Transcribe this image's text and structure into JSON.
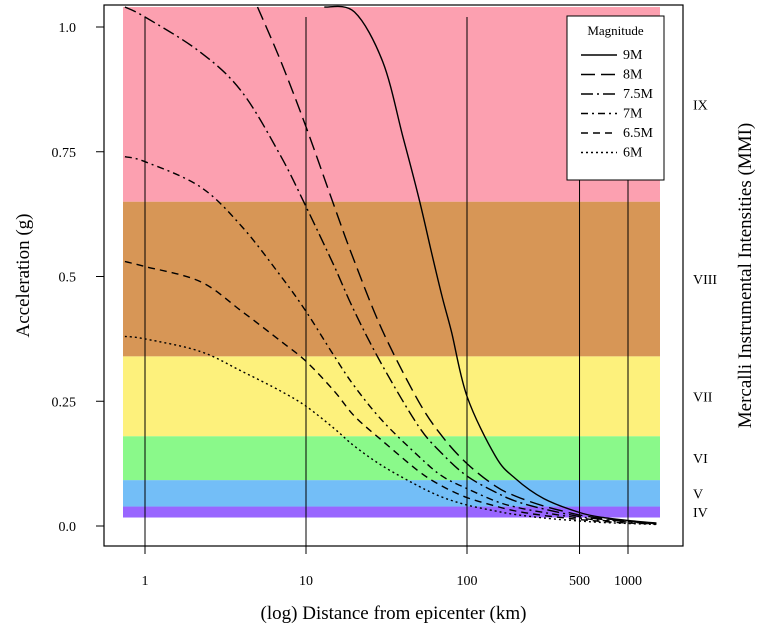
{
  "chart_data": {
    "type": "line",
    "xlabel": "(log) Distance from epicenter (km)",
    "ylabel": "Acceleration (g)",
    "right_label": "Mercalli Instrumental Intensities (MMI)",
    "x_scale": "log",
    "xlim": [
      0.6,
      3000
    ],
    "ylim": [
      0,
      1.04
    ],
    "x_ticks": [
      1,
      10,
      100,
      500,
      1000
    ],
    "x_tick_labels": [
      "1",
      "10",
      "100",
      "500",
      "1000"
    ],
    "y_ticks": [
      0,
      0.25,
      0.5,
      0.75,
      1.0
    ],
    "y_tick_labels": [
      "0.0",
      "0.25",
      "0.5",
      "0.75",
      "1.0"
    ],
    "vertical_gridlines": [
      1,
      10,
      100,
      500,
      1000
    ],
    "mmi_bands": [
      {
        "label": "IV",
        "ymin": 0.017,
        "ymax": 0.039,
        "color": "#9966ff"
      },
      {
        "label": "V",
        "ymin": 0.039,
        "ymax": 0.092,
        "color": "#73bef7"
      },
      {
        "label": "VI",
        "ymin": 0.092,
        "ymax": 0.18,
        "color": "#8af98a"
      },
      {
        "label": "VII",
        "ymin": 0.18,
        "ymax": 0.34,
        "color": "#fdf17c"
      },
      {
        "label": "VIII",
        "ymin": 0.34,
        "ymax": 0.65,
        "color": "#d79656"
      },
      {
        "label": "IX",
        "ymin": 0.65,
        "ymax": 1.04,
        "color": "#fca0b0"
      }
    ],
    "legend": {
      "title": "Magnitude",
      "position": "top-right"
    },
    "series": [
      {
        "name": "9M",
        "dash": "solid",
        "x": [
          13,
          20,
          30,
          40,
          50,
          60,
          70,
          80,
          100,
          150,
          200,
          300,
          500,
          700,
          1000,
          1500
        ],
        "y": [
          1.04,
          1.03,
          0.93,
          0.78,
          0.66,
          0.55,
          0.46,
          0.39,
          0.26,
          0.14,
          0.095,
          0.055,
          0.027,
          0.017,
          0.011,
          0.006
        ]
      },
      {
        "name": "8M",
        "dash": "long",
        "x": [
          5,
          7,
          10,
          15,
          20,
          30,
          50,
          70,
          100,
          150,
          200,
          300,
          500,
          700,
          1000,
          1500
        ],
        "y": [
          1.04,
          0.93,
          0.8,
          0.64,
          0.53,
          0.39,
          0.25,
          0.18,
          0.125,
          0.08,
          0.06,
          0.04,
          0.022,
          0.015,
          0.01,
          0.005
        ]
      },
      {
        "name": "7.5M",
        "dash": "longdot",
        "x": [
          0.75,
          1,
          2.2,
          4,
          7,
          10,
          15,
          20,
          30,
          50,
          70,
          100,
          150,
          200,
          300,
          500,
          700,
          1000,
          1500
        ],
        "y": [
          1.04,
          1.02,
          0.95,
          0.87,
          0.74,
          0.64,
          0.52,
          0.43,
          0.32,
          0.2,
          0.145,
          0.1,
          0.068,
          0.05,
          0.034,
          0.019,
          0.013,
          0.009,
          0.005
        ]
      },
      {
        "name": "7M",
        "dash": "dashdot",
        "x": [
          0.75,
          1,
          2.2,
          4,
          7,
          10,
          15,
          20,
          30,
          50,
          70,
          100,
          150,
          200,
          300,
          500,
          700,
          1000,
          1500
        ],
        "y": [
          0.74,
          0.73,
          0.68,
          0.6,
          0.5,
          0.43,
          0.34,
          0.28,
          0.21,
          0.14,
          0.1,
          0.075,
          0.05,
          0.038,
          0.027,
          0.016,
          0.011,
          0.008,
          0.004
        ]
      },
      {
        "name": "6.5M",
        "dash": "dashed",
        "x": [
          0.75,
          1,
          2.2,
          4,
          7,
          10,
          15,
          20,
          30,
          50,
          70,
          100,
          150,
          200,
          300,
          500,
          700,
          1000,
          1500
        ],
        "y": [
          0.53,
          0.52,
          0.49,
          0.43,
          0.37,
          0.33,
          0.27,
          0.22,
          0.17,
          0.11,
          0.08,
          0.057,
          0.04,
          0.03,
          0.021,
          0.013,
          0.009,
          0.006,
          0.004
        ]
      },
      {
        "name": "6M",
        "dash": "dotted",
        "x": [
          0.75,
          1,
          2.2,
          4,
          7,
          10,
          15,
          20,
          30,
          50,
          70,
          100,
          150,
          200,
          300,
          500,
          700,
          1000,
          1500
        ],
        "y": [
          0.38,
          0.375,
          0.35,
          0.31,
          0.27,
          0.24,
          0.195,
          0.16,
          0.12,
          0.08,
          0.058,
          0.042,
          0.03,
          0.023,
          0.016,
          0.01,
          0.007,
          0.005,
          0.003
        ]
      }
    ]
  }
}
